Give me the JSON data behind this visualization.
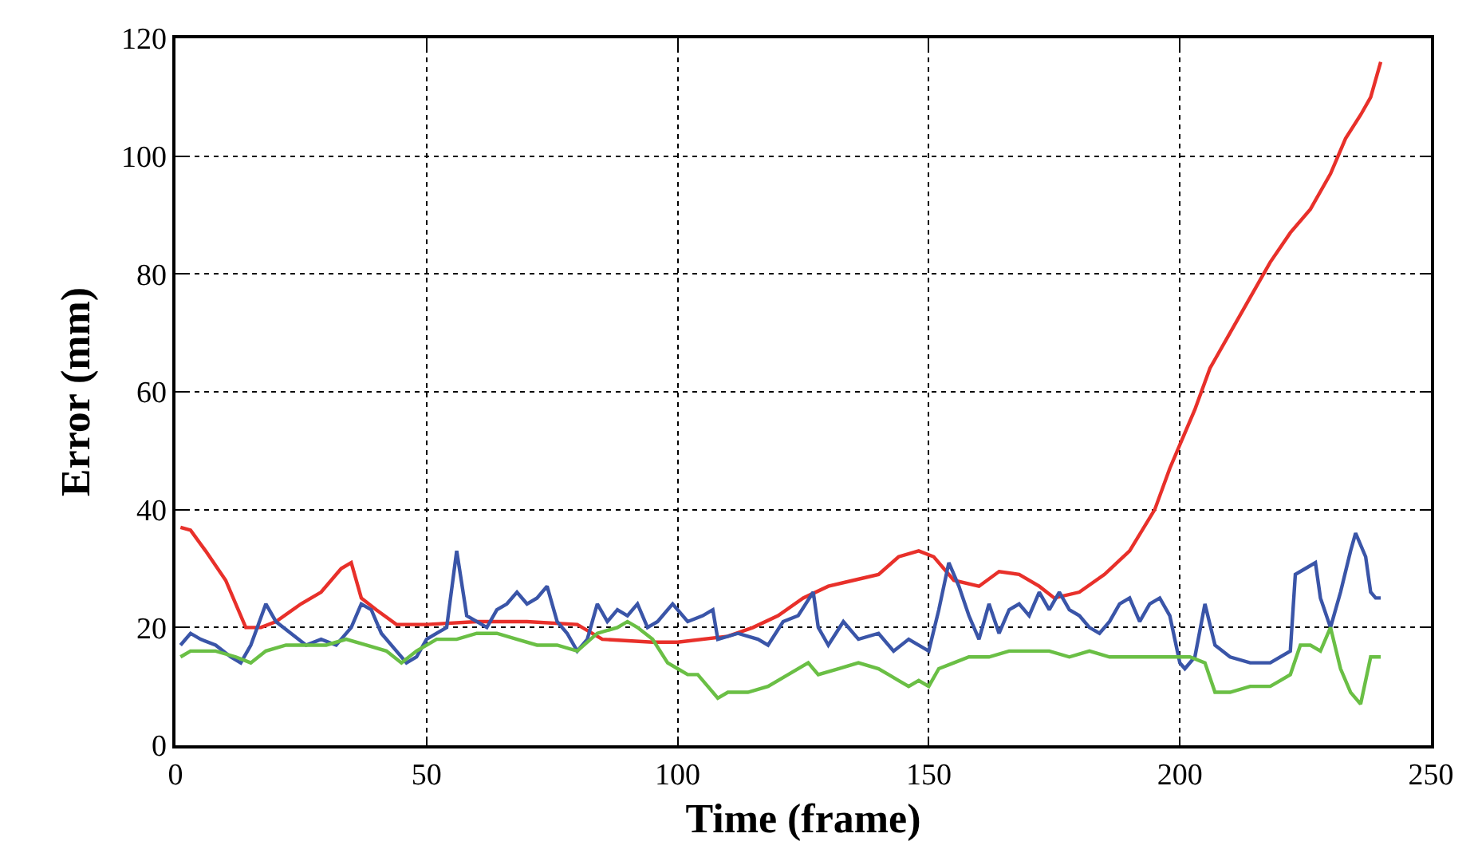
{
  "chart_data": {
    "type": "line",
    "xlabel": "Time (frame)",
    "ylabel": "Error (mm)",
    "xlim": [
      0,
      250
    ],
    "xticks": [
      0,
      50,
      100,
      150,
      200,
      250
    ],
    "ylim": [
      0,
      120
    ],
    "yticks": [
      0,
      20,
      40,
      60,
      80,
      100,
      120
    ],
    "grid": true,
    "marker": "none",
    "line_style": "solid",
    "series": [
      {
        "color": "#e8302a",
        "x": [
          1,
          3,
          6,
          10,
          14,
          17,
          20,
          25,
          29,
          33,
          35,
          37,
          40,
          44,
          50,
          60,
          70,
          80,
          85,
          95,
          100,
          110,
          115,
          120,
          125,
          130,
          135,
          140,
          144,
          148,
          151,
          155,
          160,
          164,
          168,
          172,
          175,
          180,
          185,
          190,
          195,
          198,
          200,
          203,
          206,
          210,
          214,
          218,
          222,
          226,
          230,
          233,
          236,
          238,
          240
        ],
        "values": [
          37,
          36.5,
          33,
          28,
          20,
          20,
          21,
          24,
          26,
          30,
          31,
          25,
          23,
          20.5,
          20.5,
          21,
          21,
          20.5,
          18,
          17.5,
          17.5,
          18.5,
          20,
          22,
          25,
          27,
          28,
          29,
          32,
          33,
          32,
          28,
          27,
          29.5,
          29,
          27,
          25,
          26,
          29,
          33,
          40,
          47,
          51,
          57,
          64,
          70,
          76,
          82,
          87,
          91,
          97,
          103,
          107,
          110,
          116
        ]
      },
      {
        "color": "#3a55a8",
        "x": [
          1,
          3,
          5,
          8,
          11,
          13,
          15,
          18,
          20,
          23,
          26,
          29,
          32,
          35,
          37,
          39,
          41,
          44,
          46,
          48,
          50,
          52,
          54,
          56,
          58,
          60,
          62,
          64,
          66,
          68,
          70,
          72,
          74,
          76,
          78,
          80,
          82,
          84,
          86,
          88,
          90,
          92,
          94,
          96,
          99,
          102,
          105,
          107,
          108,
          112,
          116,
          118,
          121,
          124,
          127,
          128,
          130,
          133,
          136,
          140,
          143,
          146,
          150,
          152,
          154,
          156,
          158,
          160,
          162,
          164,
          166,
          168,
          170,
          172,
          174,
          176,
          178,
          180,
          182,
          184,
          186,
          188,
          190,
          192,
          194,
          196,
          198,
          200,
          201,
          203,
          205,
          207,
          210,
          214,
          218,
          222,
          223,
          225,
          227,
          228,
          230,
          232,
          234,
          235,
          237,
          238,
          239,
          240
        ],
        "values": [
          17,
          19,
          18,
          17,
          15,
          14,
          17,
          24,
          21,
          19,
          17,
          18,
          17,
          20,
          24,
          23,
          19,
          16,
          14,
          15,
          18,
          19,
          20,
          33,
          22,
          21,
          20,
          23,
          24,
          26,
          24,
          25,
          27,
          21,
          19,
          16,
          18,
          24,
          21,
          23,
          22,
          24,
          20,
          21,
          24,
          21,
          22,
          23,
          18,
          19,
          18,
          17,
          21,
          22,
          26,
          20,
          17,
          21,
          18,
          19,
          16,
          18,
          16,
          23,
          31,
          27,
          22,
          18,
          24,
          19,
          23,
          24,
          22,
          26,
          23,
          26,
          23,
          22,
          20,
          19,
          21,
          24,
          25,
          21,
          24,
          25,
          22,
          14,
          13,
          15,
          24,
          17,
          15,
          14,
          14,
          16,
          29,
          30,
          31,
          25,
          20,
          26,
          33,
          36,
          32,
          26,
          25,
          25
        ]
      },
      {
        "color": "#6abf45",
        "x": [
          1,
          3,
          8,
          12,
          15,
          18,
          22,
          26,
          30,
          34,
          38,
          42,
          45,
          48,
          52,
          56,
          60,
          64,
          68,
          72,
          76,
          80,
          84,
          88,
          90,
          92,
          95,
          98,
          100,
          102,
          104,
          106,
          108,
          110,
          114,
          118,
          122,
          126,
          128,
          132,
          136,
          140,
          142,
          144,
          146,
          148,
          150,
          152,
          155,
          158,
          162,
          166,
          170,
          174,
          178,
          182,
          186,
          190,
          195,
          200,
          202,
          205,
          207,
          210,
          214,
          218,
          220,
          222,
          224,
          226,
          228,
          230,
          232,
          234,
          236,
          238,
          240
        ],
        "values": [
          15,
          16,
          16,
          15,
          14,
          16,
          17,
          17,
          17,
          18,
          17,
          16,
          14,
          16,
          18,
          18,
          19,
          19,
          18,
          17,
          17,
          16,
          19,
          20,
          21,
          20,
          18,
          14,
          13,
          12,
          12,
          10,
          8,
          9,
          9,
          10,
          12,
          14,
          12,
          13,
          14,
          13,
          12,
          11,
          10,
          11,
          10,
          13,
          14,
          15,
          15,
          16,
          16,
          16,
          15,
          16,
          15,
          15,
          15,
          15,
          15,
          14,
          9,
          9,
          10,
          10,
          11,
          12,
          17,
          17,
          16,
          20,
          13,
          9,
          7,
          15,
          15
        ]
      }
    ]
  }
}
